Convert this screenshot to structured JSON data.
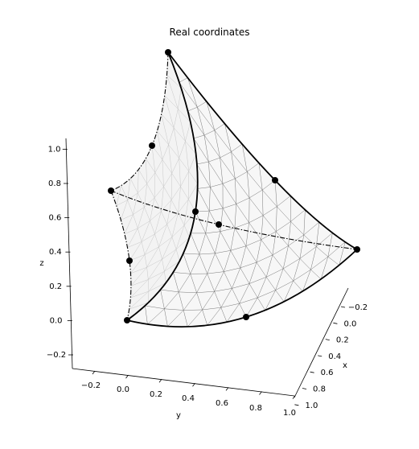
{
  "chart_data": {
    "type": "surface3d",
    "title": "Real coordinates",
    "axes": {
      "x": {
        "label": "x",
        "ticks": [
          "−0.2",
          "0.0",
          "0.2",
          "0.4",
          "0.6",
          "0.8",
          "1.0"
        ],
        "range": [
          -0.3,
          1.05
        ]
      },
      "y": {
        "label": "y",
        "ticks": [
          "−0.2",
          "0.0",
          "0.2",
          "0.4",
          "0.6",
          "0.8",
          "1.0"
        ],
        "range": [
          -0.3,
          1.05
        ]
      },
      "z": {
        "label": "z",
        "ticks": [
          "−0.2",
          "0.0",
          "0.2",
          "0.4",
          "0.6",
          "0.8",
          "1.0"
        ],
        "range": [
          -0.3,
          1.05
        ]
      }
    },
    "surface": "curved triangular patch with triangular mesh, vertices at (1,0,0), (0,1,0), (0,0,1)",
    "nodes": [
      {
        "x": 0.0,
        "y": 0.0,
        "z": 1.0
      },
      {
        "x": 1.0,
        "y": 0.0,
        "z": 0.0
      },
      {
        "x": 0.0,
        "y": 1.0,
        "z": 0.0
      },
      {
        "x": 0.5,
        "y": 0.5,
        "z": 0.0
      },
      {
        "x": 0.0,
        "y": 0.5,
        "z": 0.5
      },
      {
        "x": 0.5,
        "y": 0.0,
        "z": 0.5
      },
      {
        "x": 0.33,
        "y": 0.33,
        "z": 0.33
      },
      {
        "x": 0.6,
        "y": 0.2,
        "z": 0.2
      },
      {
        "x": 0.2,
        "y": 0.2,
        "z": 0.6
      },
      {
        "x": 0.2,
        "y": 0.6,
        "z": 0.2
      }
    ],
    "grid": false,
    "legend": null
  }
}
